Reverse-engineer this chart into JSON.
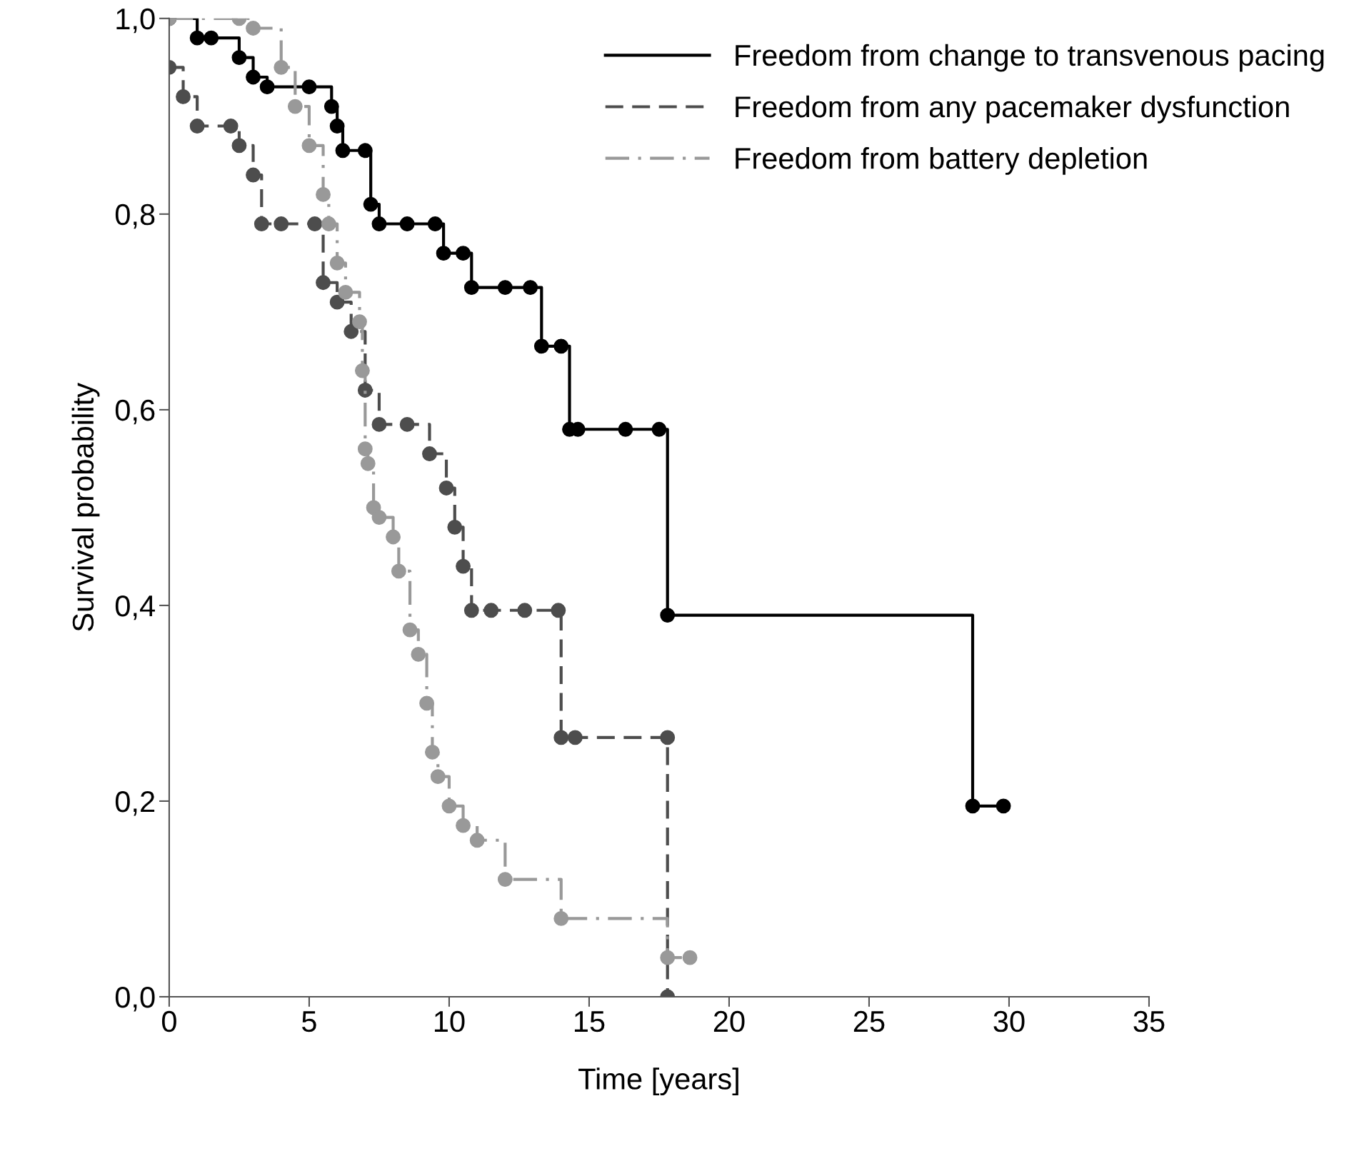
{
  "chart_data": {
    "type": "step",
    "xlabel": "Time [years]",
    "ylabel": "Survival probability",
    "xlim": [
      0,
      35
    ],
    "xticks": [
      0,
      5,
      10,
      15,
      20,
      25,
      30,
      35
    ],
    "ylim": [
      0,
      1.0
    ],
    "yticks": [
      {
        "value": 0,
        "label": "0,0"
      },
      {
        "value": 0.2,
        "label": "0,2"
      },
      {
        "value": 0.4,
        "label": "0,4"
      },
      {
        "value": 0.6,
        "label": "0,6"
      },
      {
        "value": 0.8,
        "label": "0,8"
      },
      {
        "value": 1.0,
        "label": "1,0"
      }
    ],
    "legend": "top right",
    "marker": "circle",
    "grid": false,
    "series": [
      {
        "name": "Freedom from change to transvenous pacing",
        "color": "#000000",
        "line_style": "solid",
        "x": [
          0,
          1,
          1.5,
          2.5,
          3,
          3.5,
          5,
          5.8,
          6,
          6.2,
          7,
          7.2,
          7.5,
          8.5,
          9.5,
          9.8,
          10.5,
          10.8,
          12,
          12.9,
          13.3,
          14,
          14.3,
          14.6,
          16.3,
          17.5,
          17.8,
          28.7,
          29.8
        ],
        "values": [
          1.0,
          0.98,
          0.98,
          0.96,
          0.94,
          0.93,
          0.93,
          0.91,
          0.89,
          0.865,
          0.865,
          0.81,
          0.79,
          0.79,
          0.79,
          0.76,
          0.76,
          0.725,
          0.725,
          0.725,
          0.665,
          0.665,
          0.58,
          0.58,
          0.58,
          0.58,
          0.39,
          0.195,
          0.195
        ]
      },
      {
        "name": "Freedom from any pacemaker dysfunction",
        "color": "#4d4d4d",
        "line_style": "dashed",
        "x": [
          0,
          0.5,
          1,
          2.2,
          2.5,
          3,
          3.3,
          4,
          5.2,
          5.5,
          6,
          6.5,
          7,
          7.5,
          8.5,
          9.3,
          9.9,
          10.2,
          10.5,
          10.8,
          11.5,
          12.7,
          13.9,
          14,
          14.5,
          17.8,
          17.8
        ],
        "values": [
          0.95,
          0.92,
          0.89,
          0.89,
          0.87,
          0.84,
          0.79,
          0.79,
          0.79,
          0.73,
          0.71,
          0.68,
          0.62,
          0.585,
          0.585,
          0.555,
          0.52,
          0.48,
          0.44,
          0.395,
          0.395,
          0.395,
          0.395,
          0.265,
          0.265,
          0.265,
          0.0
        ]
      },
      {
        "name": "Freedom from battery depletion",
        "color": "#999999",
        "line_style": "dashdot",
        "x": [
          0,
          2.5,
          3,
          4,
          4.5,
          5,
          5.5,
          5.7,
          6,
          6.3,
          6.8,
          6.9,
          7,
          7.1,
          7.3,
          7.5,
          8,
          8.2,
          8.6,
          8.9,
          9.2,
          9.4,
          9.6,
          10,
          10.5,
          11,
          12,
          14,
          17.8,
          18.6
        ],
        "values": [
          1.0,
          1.0,
          0.99,
          0.95,
          0.91,
          0.87,
          0.82,
          0.79,
          0.75,
          0.72,
          0.69,
          0.64,
          0.56,
          0.545,
          0.5,
          0.49,
          0.47,
          0.435,
          0.375,
          0.35,
          0.3,
          0.25,
          0.225,
          0.195,
          0.175,
          0.16,
          0.12,
          0.08,
          0.04,
          0.04
        ]
      }
    ]
  }
}
